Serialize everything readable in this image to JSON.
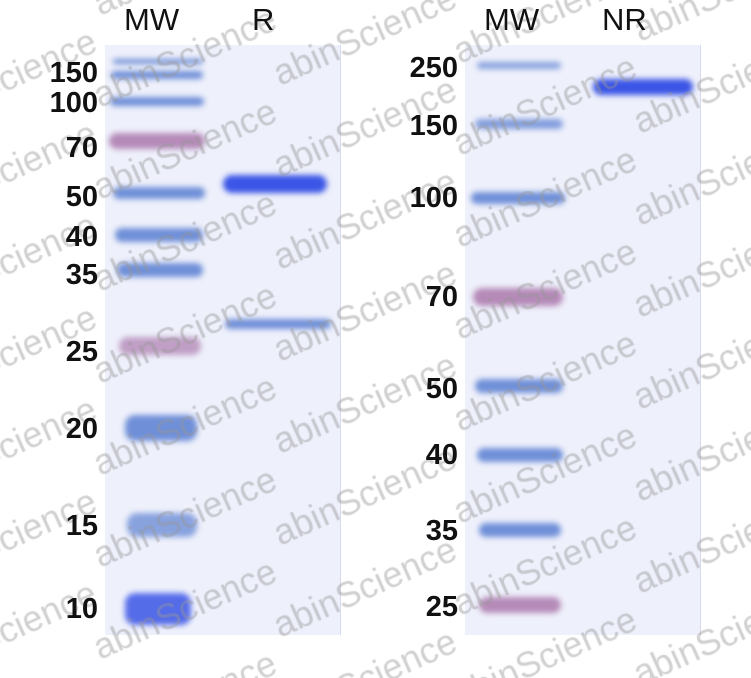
{
  "left_panel": {
    "lanes": [
      "MW",
      "R"
    ],
    "markers": [
      "150",
      "100",
      "70",
      "50",
      "40",
      "35",
      "25",
      "20",
      "15",
      "10"
    ]
  },
  "right_panel": {
    "lanes": [
      "MW",
      "NR"
    ],
    "markers": [
      "250",
      "150",
      "100",
      "70",
      "50",
      "40",
      "35",
      "25"
    ]
  },
  "watermark": "abinScience",
  "colors": {
    "gel": "#eef0fb",
    "ladder_blue": "#6f8fd8",
    "ladder_pink": "#b58ab8",
    "sample_band": "#3b55e6"
  }
}
